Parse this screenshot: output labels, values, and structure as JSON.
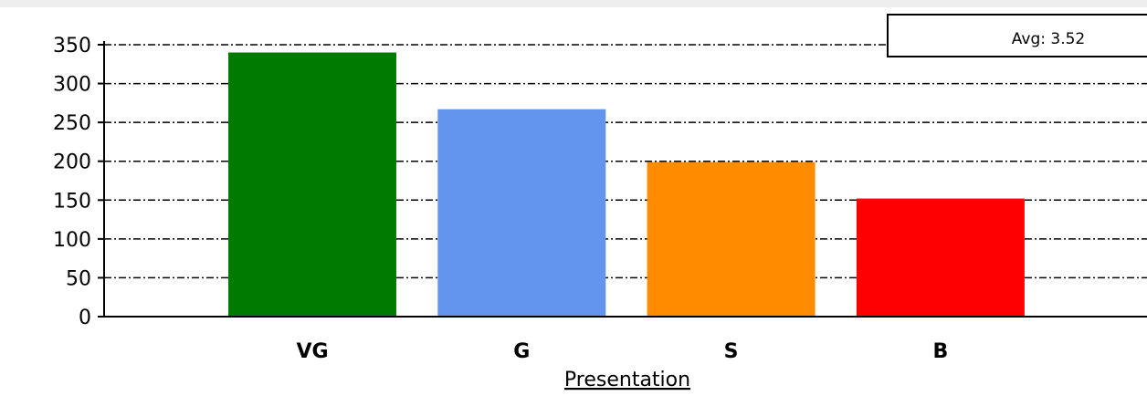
{
  "chart_data": {
    "type": "bar",
    "categories": [
      "VG",
      "G",
      "S",
      "B"
    ],
    "values": [
      340,
      267,
      199,
      152
    ],
    "colors": [
      "#007a00",
      "#6495ed",
      "#ff8c00",
      "#ff0000"
    ],
    "xlabel": "Presentation",
    "ylabel": "",
    "ylim": [
      0,
      350
    ],
    "yticks": [
      0,
      50,
      100,
      150,
      200,
      250,
      300,
      350
    ],
    "grid": true,
    "grid_style": "dash-dot",
    "annotation": "Avg: 3.52",
    "annotation_placement": "top-right"
  }
}
